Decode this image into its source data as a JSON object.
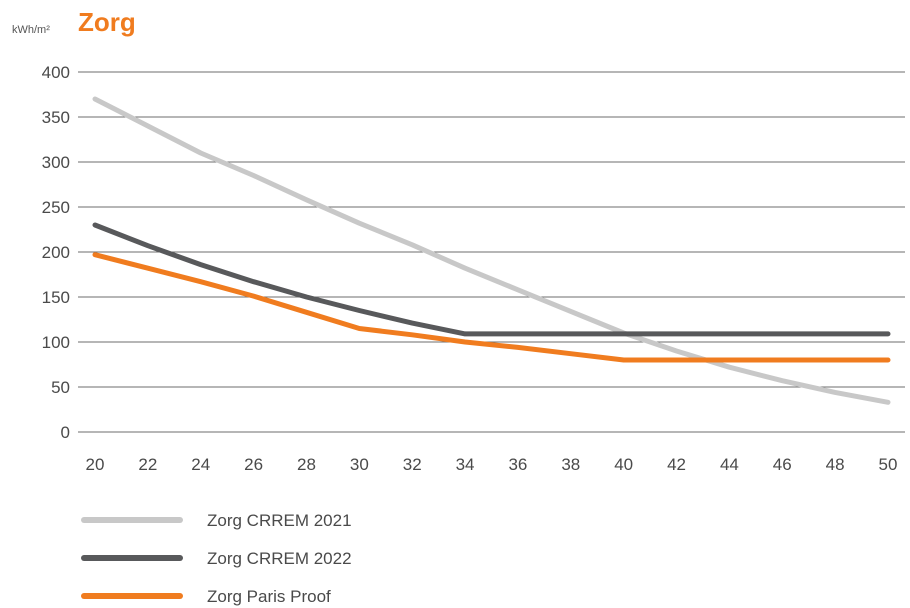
{
  "chart_data": {
    "type": "line",
    "unit_label": "kWh/m²",
    "title": "Zorg",
    "title_color": "#f07c1f",
    "x": [
      20,
      22,
      24,
      26,
      28,
      30,
      32,
      34,
      36,
      38,
      40,
      42,
      44,
      46,
      48,
      50
    ],
    "x_ticks": [
      "20",
      "22",
      "24",
      "26",
      "28",
      "30",
      "32",
      "34",
      "36",
      "38",
      "40",
      "42",
      "44",
      "46",
      "48",
      "50"
    ],
    "xlim": [
      20,
      50
    ],
    "y_ticks": [
      "0",
      "50",
      "100",
      "150",
      "200",
      "250",
      "300",
      "350",
      "400"
    ],
    "ylim": [
      0,
      400
    ],
    "grid": true,
    "legend_position": "bottom",
    "series": [
      {
        "name": "Zorg CRREM 2021",
        "color": "#c8c8c8",
        "points": [
          [
            20,
            370
          ],
          [
            22,
            340
          ],
          [
            24,
            310
          ],
          [
            26,
            285
          ],
          [
            28,
            258
          ],
          [
            30,
            232
          ],
          [
            32,
            208
          ],
          [
            34,
            182
          ],
          [
            36,
            158
          ],
          [
            38,
            134
          ],
          [
            40,
            110
          ],
          [
            42,
            90
          ],
          [
            44,
            72
          ],
          [
            46,
            57
          ],
          [
            48,
            44
          ],
          [
            50,
            33
          ]
        ]
      },
      {
        "name": "Zorg CRREM 2022",
        "color": "#58595b",
        "points": [
          [
            20,
            230
          ],
          [
            22,
            207
          ],
          [
            24,
            186
          ],
          [
            26,
            167
          ],
          [
            28,
            150
          ],
          [
            30,
            135
          ],
          [
            32,
            121
          ],
          [
            34,
            109
          ],
          [
            36,
            109
          ],
          [
            38,
            109
          ],
          [
            40,
            109
          ],
          [
            42,
            109
          ],
          [
            44,
            109
          ],
          [
            46,
            109
          ],
          [
            48,
            109
          ],
          [
            50,
            109
          ]
        ]
      },
      {
        "name": "Zorg Paris Proof",
        "color": "#f07c1f",
        "points": [
          [
            20,
            197
          ],
          [
            22,
            182
          ],
          [
            24,
            167
          ],
          [
            26,
            151
          ],
          [
            28,
            133
          ],
          [
            30,
            115
          ],
          [
            32,
            108
          ],
          [
            34,
            100
          ],
          [
            36,
            94
          ],
          [
            38,
            87
          ],
          [
            40,
            80
          ],
          [
            42,
            80
          ],
          [
            44,
            80
          ],
          [
            46,
            80
          ],
          [
            48,
            80
          ],
          [
            50,
            80
          ]
        ]
      }
    ]
  }
}
